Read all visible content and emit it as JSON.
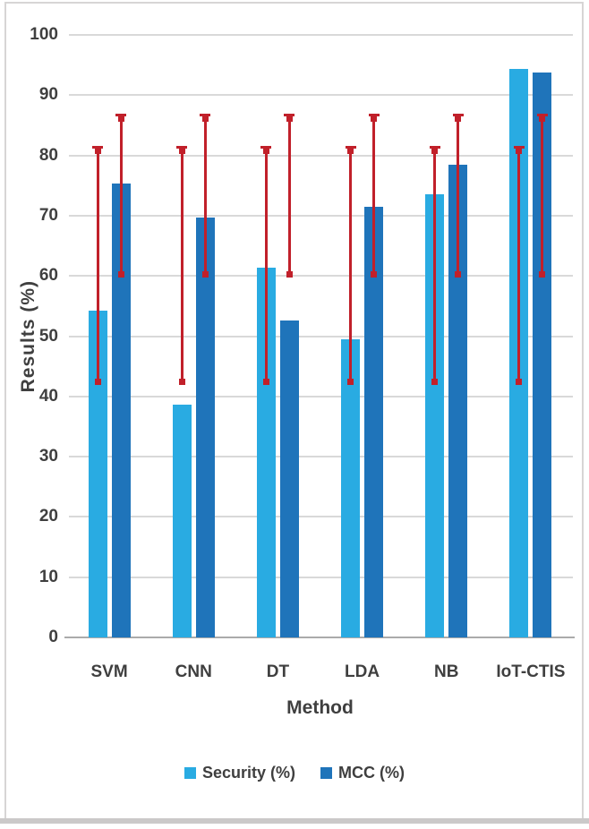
{
  "window": {
    "background": "#FFFFFF",
    "frame_border_color": "#D7D5D5",
    "frame_bottom_band_color": "#CBC9C9"
  },
  "chart_data": {
    "type": "bar",
    "title": "",
    "xlabel": "Method",
    "ylabel": "Results (%)",
    "ylim": [
      0,
      100
    ],
    "ytick_labels": [
      "100",
      "90",
      "80",
      "70",
      "60",
      "50",
      "40",
      "30",
      "20",
      "10",
      "0"
    ],
    "categories": [
      "SVM",
      "CNN",
      "DT",
      "LDA",
      "NB",
      "IoT-CTIS"
    ],
    "series": [
      {
        "name": "Security (%)",
        "color": "#29ABE2",
        "values": [
          54.3,
          38.6,
          61.4,
          49.5,
          73.5,
          94.3
        ],
        "error_low": [
          42.3,
          42.3,
          42.3,
          42.3,
          42.3,
          42.3
        ],
        "error_high": [
          81.6,
          81.6,
          81.6,
          81.6,
          81.6,
          81.6
        ]
      },
      {
        "name": "MCC (%)",
        "color": "#1F74BA",
        "values": [
          75.4,
          69.7,
          52.6,
          71.5,
          78.4,
          93.7
        ],
        "error_low": [
          60.2,
          60.2,
          60.2,
          60.2,
          60.2,
          60.2
        ],
        "error_high": [
          86.9,
          86.9,
          86.9,
          86.9,
          86.9,
          86.9
        ]
      }
    ],
    "error_bar_color": "#C1202A",
    "grid": true,
    "gridline_color": "#D9D9D9",
    "axis_line_color": "#ABABAB",
    "text_color": "#3F3F3F",
    "legend_position": "bottom"
  }
}
